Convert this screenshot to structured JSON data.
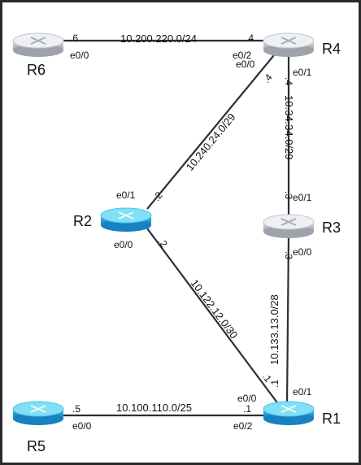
{
  "routers": [
    {
      "id": "R6",
      "label": "R6",
      "style": "gray"
    },
    {
      "id": "R4",
      "label": "R4",
      "style": "gray"
    },
    {
      "id": "R2",
      "label": "R2",
      "style": "blue"
    },
    {
      "id": "R3",
      "label": "R3",
      "style": "gray"
    },
    {
      "id": "R5",
      "label": "R5",
      "style": "blue"
    },
    {
      "id": "R1",
      "label": "R1",
      "style": "blue"
    }
  ],
  "links": [
    {
      "id": "r6-r4",
      "subnet": "10.200.220.0/24",
      "a_addr": ".6",
      "a_iface": "e0/0",
      "b_addr": ".4",
      "b_iface": "e0/2"
    },
    {
      "id": "r2-r4",
      "subnet": "10.240.24.0/29",
      "a_addr": ".2",
      "a_iface": "e0/1",
      "b_addr": ".4",
      "b_iface": "e0/0"
    },
    {
      "id": "r4-r3",
      "subnet": "10.34.34.0/29",
      "a_addr": ".4",
      "a_iface": "e0/1",
      "b_addr": ".3",
      "b_iface": "e0/1"
    },
    {
      "id": "r3-r1",
      "subnet": "10.133.13.0/28",
      "a_addr": ".3",
      "a_iface": "e0/0",
      "b_addr": ".1",
      "b_iface": "e0/1"
    },
    {
      "id": "r2-r1",
      "subnet": "10.122.12.0/30",
      "a_addr": ".2",
      "a_iface": "e0/0",
      "b_addr": ".1",
      "b_iface": "e0/0"
    },
    {
      "id": "r5-r1",
      "subnet": "10.100.110.0/25",
      "a_addr": ".5",
      "a_iface": "e0/0",
      "b_addr": ".1",
      "b_iface": "e0/2"
    }
  ],
  "colors": {
    "blue_router_top": "#7fe0f6",
    "blue_router_body": "#26a7db",
    "gray_router_top": "#eef0f3",
    "gray_router_body": "#b3b7bf",
    "link": "#2b2f3a"
  }
}
